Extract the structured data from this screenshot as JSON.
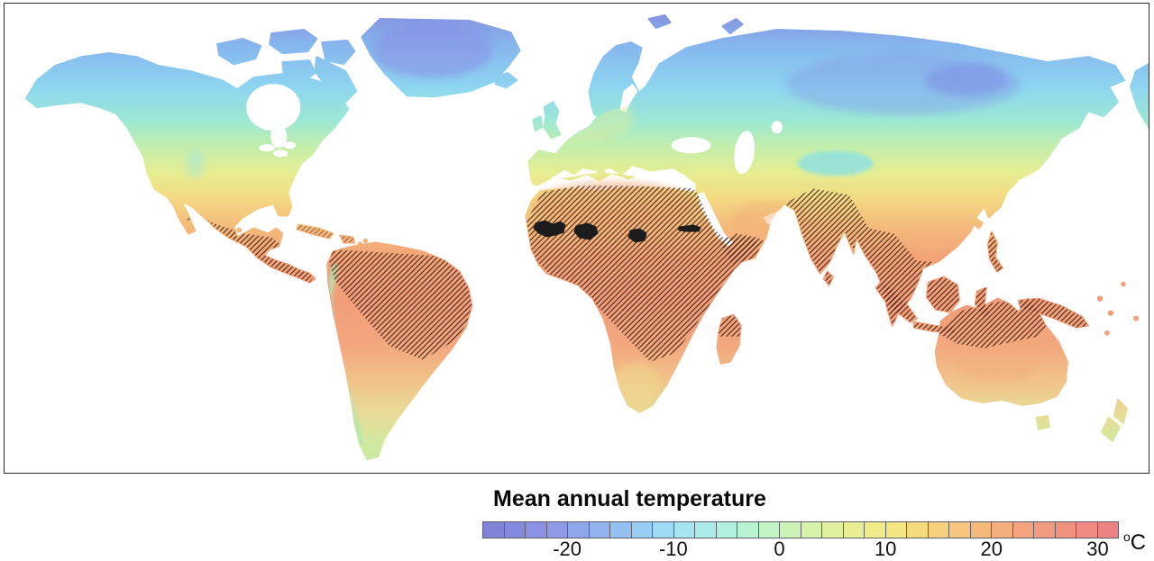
{
  "legend": {
    "title": "Mean annual temperature",
    "unit_superscript": "o",
    "unit_base": "C",
    "scale_min_c": -28,
    "scale_max_c": 32,
    "cell_step_c": 2,
    "ticks": [
      {
        "label": "-20",
        "value": -20
      },
      {
        "label": "-10",
        "value": -10
      },
      {
        "label": "0",
        "value": 0
      },
      {
        "label": "10",
        "value": 10
      },
      {
        "label": "20",
        "value": 20
      },
      {
        "label": "30",
        "value": 30
      }
    ],
    "cells": [
      "#8183d7",
      "#868ade",
      "#8b92e3",
      "#9099e8",
      "#90a6ec",
      "#92b3f0",
      "#95c1f2",
      "#99cef4",
      "#9edaf4",
      "#a5e4f1",
      "#abebea",
      "#b2f0e0",
      "#baf3d2",
      "#c3f5c5",
      "#cdf4b7",
      "#d7f2aa",
      "#e0f09e",
      "#e9ee93",
      "#f0ec89",
      "#f4e682",
      "#f6db7e",
      "#f7d07d",
      "#f7c57d",
      "#f6ba7d",
      "#f5af7e",
      "#f4a57f",
      "#f29b80",
      "#f19281",
      "#f08a82",
      "#ee8283"
    ],
    "cell_border_color": "#5e5f68"
  },
  "map": {
    "ocean_color": "#ffffff",
    "frame_color": "#2b2b2b",
    "hatch_color": "#35130a",
    "solid_patch_color": "#1c1c1c",
    "hatched_regions": [
      "Amazon basin",
      "Central America and Caribbean",
      "Sahara-Sahel and East Africa",
      "southwest Arabia",
      "India and Southeast Asia",
      "Maritime Southeast Asia and New Guinea",
      "northern Australia",
      "northern Madagascar"
    ],
    "solid_black_patches": [
      "Sahel patch 1",
      "Sahel patch 2",
      "Sahel patch 3",
      "Sahel patch 4"
    ]
  }
}
